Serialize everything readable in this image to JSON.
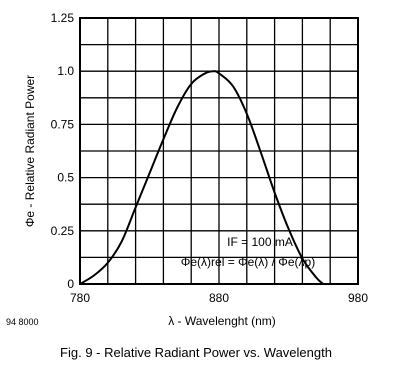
{
  "chart_data": {
    "type": "line",
    "ylabel": "Φe - Relative Radiant Power",
    "xlabel": "λ - Wavelenght (nm)",
    "xlim": [
      780,
      980
    ],
    "ylim": [
      0,
      1.25
    ],
    "x_ticks": [
      "780",
      "880",
      "980"
    ],
    "y_ticks": [
      "0",
      "0.25",
      "0.5",
      "0.75",
      "1.0",
      "1.25"
    ],
    "grid": true,
    "series": [
      {
        "x": [
          780,
          790,
          800,
          810,
          820,
          830,
          840,
          850,
          860,
          870,
          876,
          880,
          890,
          900,
          910,
          920,
          930,
          940,
          950,
          955
        ],
        "y": [
          0.0,
          0.04,
          0.1,
          0.2,
          0.36,
          0.52,
          0.68,
          0.83,
          0.94,
          0.99,
          1.0,
          0.99,
          0.93,
          0.8,
          0.62,
          0.43,
          0.26,
          0.12,
          0.03,
          0.0
        ]
      }
    ],
    "annotations": [
      "IF = 100 mA",
      "Φe(λ)rel = Φe(λ) / Φe(λp)"
    ]
  },
  "figure_number": "94 8000",
  "caption": "Fig. 9 - Relative Radiant Power vs. Wavelength"
}
